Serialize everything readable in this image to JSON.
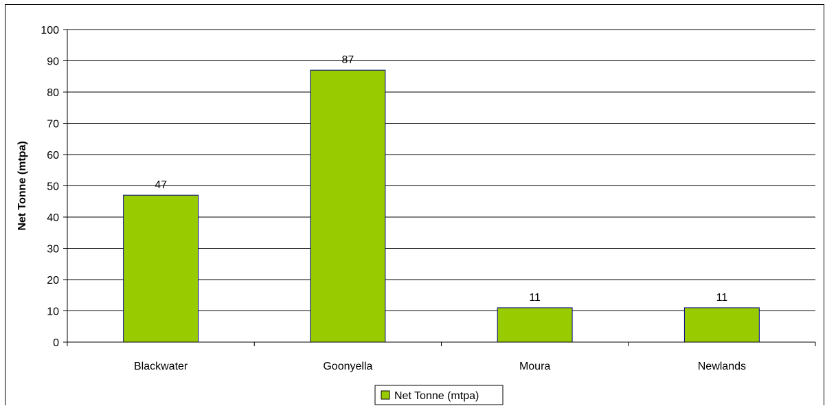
{
  "chart_data": {
    "type": "bar",
    "categories": [
      "Blackwater",
      "Goonyella",
      "Moura",
      "Newlands"
    ],
    "series": [
      {
        "name": "Net Tonne (mtpa)",
        "values": [
          47,
          87,
          11,
          11
        ],
        "color": "#99cc00"
      }
    ],
    "data_labels": [
      "47",
      "87",
      "11",
      "11"
    ],
    "title": "",
    "xlabel": "",
    "ylabel": "Net Tonne (mtpa)",
    "ylim": [
      0,
      100
    ],
    "yticks": [
      0,
      10,
      20,
      30,
      40,
      50,
      60,
      70,
      80,
      90,
      100
    ],
    "grid": true,
    "legend_position": "bottom",
    "bar_border_color": "#000080"
  }
}
